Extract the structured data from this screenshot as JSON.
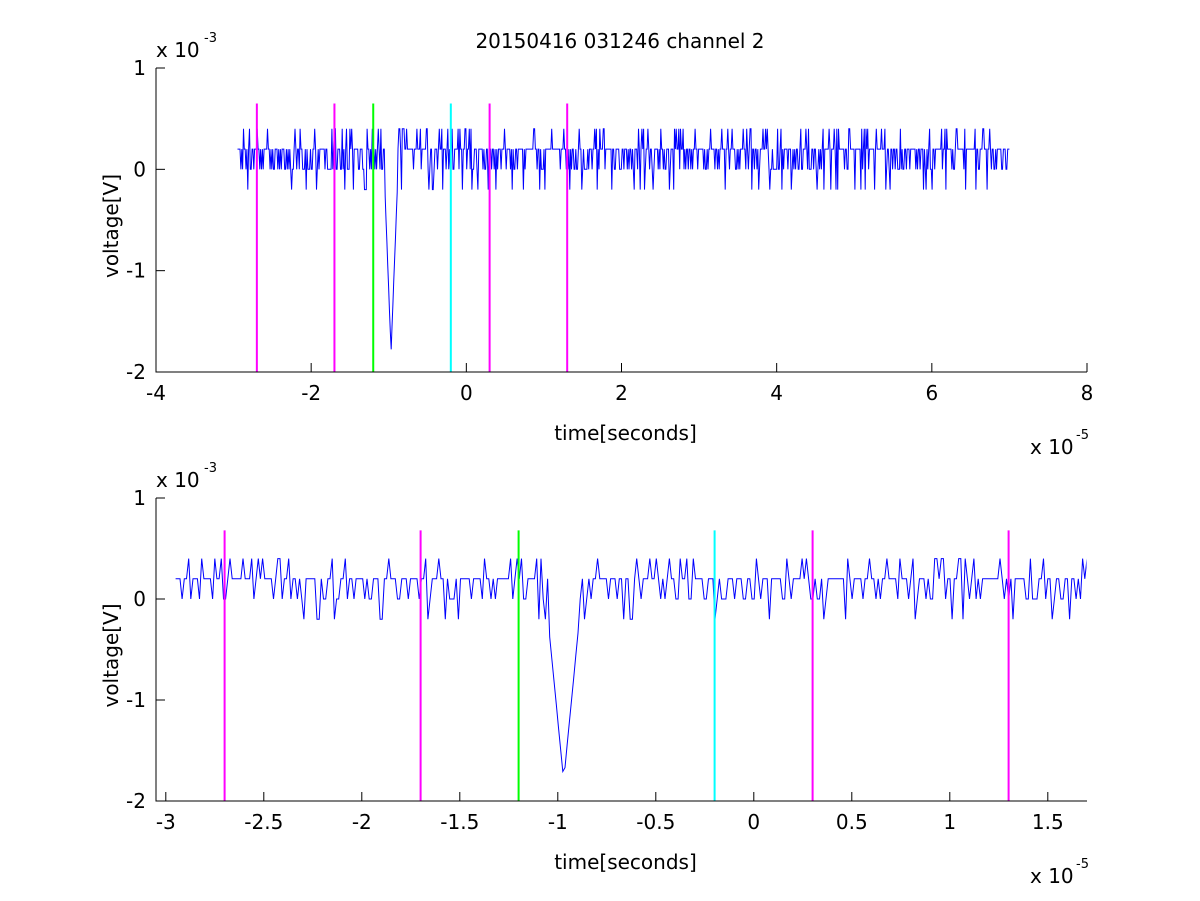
{
  "figure": {
    "title": "20150416 031246 channel 2"
  },
  "chart_data": [
    {
      "type": "line",
      "title": "20150416 031246 channel 2",
      "xlabel": "time[seconds]",
      "ylabel": "voltage[V]",
      "x_exponent_label": "x 10",
      "x_exponent": "-5",
      "y_exponent_label": "x 10",
      "y_exponent": "-3",
      "xlim": [
        -4,
        8
      ],
      "ylim": [
        -2,
        1
      ],
      "xticks": [
        -4,
        -2,
        0,
        2,
        4,
        6,
        8
      ],
      "yticks": [
        -2,
        -1,
        0,
        1
      ],
      "grid": false,
      "trace": {
        "color": "#0000ff",
        "x_range": [
          -2.95,
          7.0
        ],
        "baseline": [
          0,
          0.2
        ],
        "noise_levels": [
          -0.2,
          0,
          0.2,
          0.4
        ],
        "spike": {
          "x": -0.97,
          "min": -1.8
        }
      },
      "vlines": [
        {
          "x": -2.7,
          "color": "#ff00ff"
        },
        {
          "x": -1.7,
          "color": "#ff00ff"
        },
        {
          "x": -1.2,
          "color": "#00ff00"
        },
        {
          "x": -0.2,
          "color": "#00ffff"
        },
        {
          "x": 0.3,
          "color": "#ff00ff"
        },
        {
          "x": 1.3,
          "color": "#ff00ff"
        }
      ],
      "vline_range": [
        -2,
        0.65
      ]
    },
    {
      "type": "line",
      "title": "",
      "xlabel": "time[seconds]",
      "ylabel": "voltage[V]",
      "x_exponent_label": "x 10",
      "x_exponent": "-5",
      "y_exponent_label": "x 10",
      "y_exponent": "-3",
      "xlim": [
        -3.05,
        1.7
      ],
      "ylim": [
        -2,
        1
      ],
      "xticks": [
        -3,
        -2.5,
        -2,
        -1.5,
        -1,
        -0.5,
        0,
        0.5,
        1,
        1.5
      ],
      "yticks": [
        -2,
        -1,
        0,
        1
      ],
      "grid": false,
      "trace": {
        "color": "#0000ff",
        "x_range": [
          -2.95,
          1.7
        ],
        "baseline": [
          0,
          0.2
        ],
        "noise_levels": [
          -0.2,
          0,
          0.2,
          0.4
        ],
        "spike": {
          "x": -0.97,
          "min": -1.8
        }
      },
      "vlines": [
        {
          "x": -2.7,
          "color": "#ff00ff"
        },
        {
          "x": -1.7,
          "color": "#ff00ff"
        },
        {
          "x": -1.2,
          "color": "#00ff00"
        },
        {
          "x": -0.2,
          "color": "#00ffff"
        },
        {
          "x": 0.3,
          "color": "#ff00ff"
        },
        {
          "x": 1.3,
          "color": "#ff00ff"
        }
      ],
      "vline_range": [
        -2,
        0.68
      ]
    }
  ]
}
